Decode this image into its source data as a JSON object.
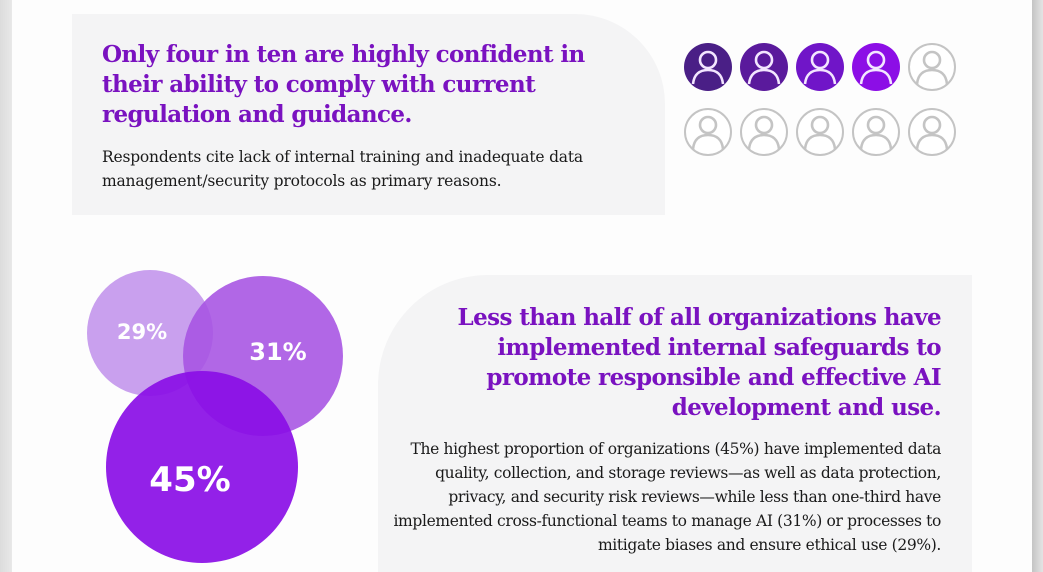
{
  "section_confidence": {
    "headline": "Only four in ten are highly confident in their ability to comply with current regulation and guidance.",
    "body": "Respondents cite lack of internal training and inadequate data management/security protocols as primary reasons.",
    "pictogram": {
      "total": 10,
      "highlighted": 4,
      "highlight_colors": [
        "#4a1f86",
        "#5a1a9c",
        "#7015c8",
        "#8c0ee6"
      ],
      "empty_color": "#c4c4c4",
      "icon": "person-icon"
    }
  },
  "section_safeguards": {
    "headline": "Less than half of all organizations have implemented internal safeguards to promote responsible and effective AI development and use.",
    "body": "The highest proportion of organizations (45%) have implemented data quality, collection, and storage reviews—as well as data protection, privacy, and security risk reviews—while less than one-third have implemented cross-functional teams to manage AI (31%) or processes to mitigate biases and ensure ethical use (29%).",
    "bubbles": [
      {
        "label": "29%",
        "value": 29,
        "color": "#c9a0ee"
      },
      {
        "label": "31%",
        "value": 31,
        "color": "#a652e3"
      },
      {
        "label": "45%",
        "value": 45,
        "color": "#8a0ee6"
      }
    ]
  }
}
